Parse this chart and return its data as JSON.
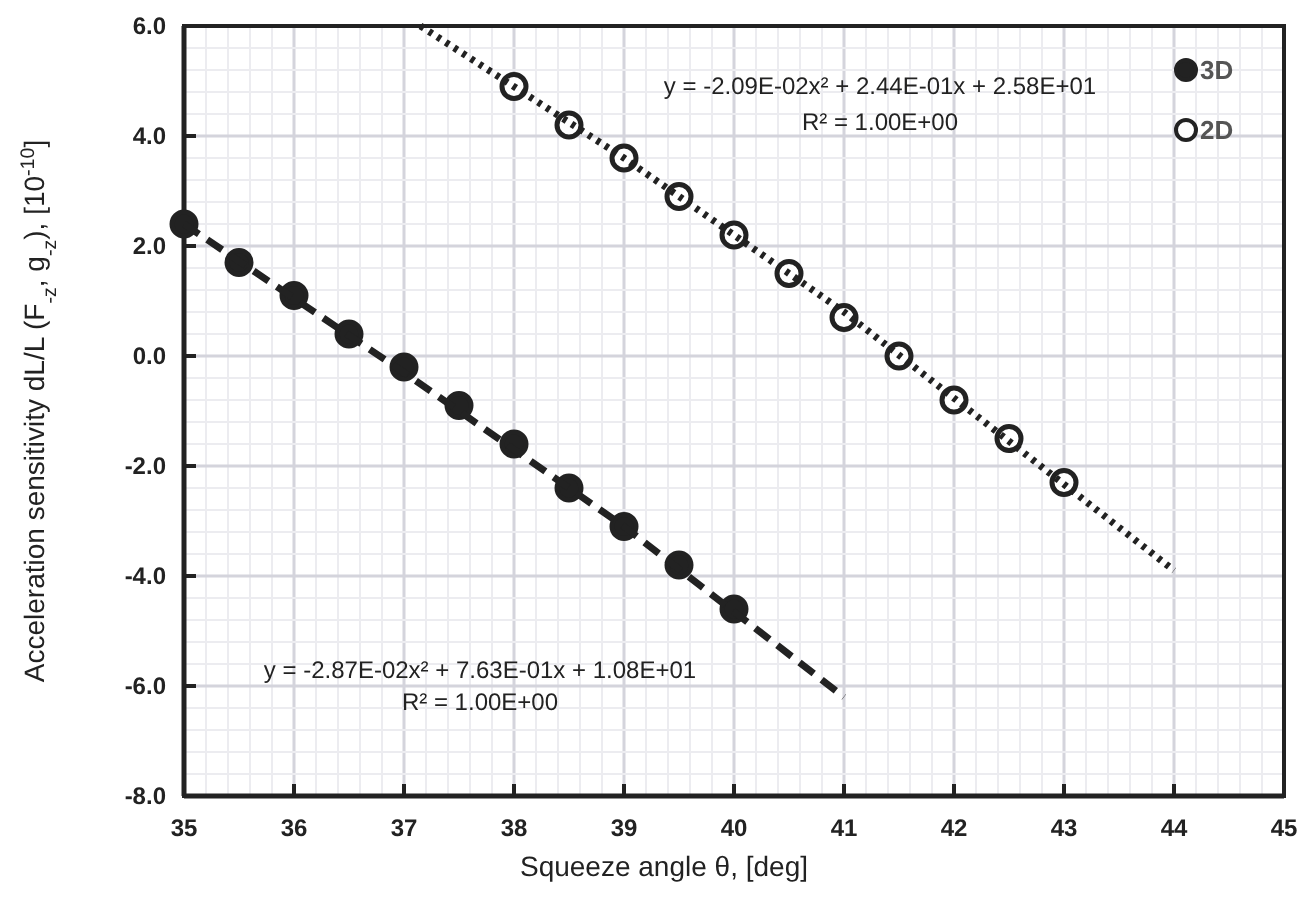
{
  "chart_data": {
    "type": "scatter",
    "xlabel": "Squeeze angle θ, [deg]",
    "ylabel": "Acceleration sensitivity dL/L (F$_{-z}$, g$_{-z}$), [10$^{-10}$]",
    "xlim": [
      35,
      45
    ],
    "ylim": [
      -8,
      6
    ],
    "xticks": [
      35,
      36,
      37,
      38,
      39,
      40,
      41,
      42,
      43,
      44,
      45
    ],
    "yticks": [
      {
        "value": -8,
        "label": "-8.0"
      },
      {
        "value": -6,
        "label": "-6.0"
      },
      {
        "value": -4,
        "label": "-4.0"
      },
      {
        "value": -2,
        "label": "-2.0"
      },
      {
        "value": 0,
        "label": "0.0"
      },
      {
        "value": 2,
        "label": "2.0"
      },
      {
        "value": 4,
        "label": "4.0"
      },
      {
        "value": 6,
        "label": "6.0"
      }
    ],
    "grid": true,
    "legend": "top right",
    "marker": "circle",
    "series": [
      {
        "name": "3D",
        "color": "#222222",
        "x": [
          35,
          35.5,
          36,
          36.5,
          37,
          37.5,
          38,
          38.5,
          39,
          39.5,
          40
        ],
        "values": [
          2.4,
          1.7,
          1.1,
          0.4,
          -0.2,
          -0.9,
          -1.6,
          -2.4,
          -3.1,
          -3.8,
          -4.6
        ]
      },
      {
        "name": "2D",
        "color": "#ffffff",
        "x": [
          38,
          38.5,
          39,
          39.5,
          40,
          40.5,
          41,
          41.5,
          42,
          42.5,
          43
        ],
        "values": [
          4.9,
          4.2,
          3.6,
          2.9,
          2.2,
          1.5,
          0.7,
          0.0,
          -0.8,
          -1.5,
          -2.3
        ]
      },
      {
        "type": "line",
        "color": "#222222",
        "line_style": "dashed",
        "marker": "none",
        "x": [
          35,
          37,
          39,
          41
        ],
        "values": [
          2.4,
          -0.3,
          -3.1,
          -6.2
        ]
      },
      {
        "type": "line",
        "color": "#222222",
        "line_style": "dotted",
        "marker": "none",
        "x": [
          37.15,
          39,
          41,
          44
        ],
        "values": [
          6.0,
          3.6,
          0.8,
          -3.9
        ]
      }
    ],
    "annotations": [
      "y = -2.09E-02x² + 2.44E-01x + 2.58E+01",
      "R² = 1.00E+00",
      "y = -2.87E-02x² + 7.63E-01x + 1.08E+01",
      "R² = 1.00E+00"
    ]
  }
}
